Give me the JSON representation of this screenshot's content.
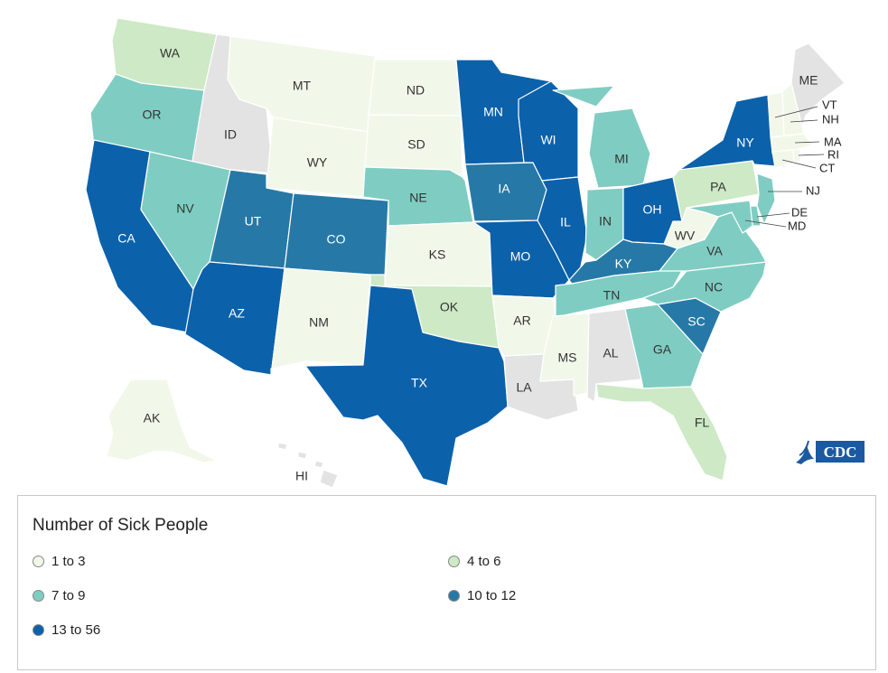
{
  "legend": {
    "title": "Number of Sick People",
    "items": [
      {
        "label": "1 to 3",
        "color": "#f1f8ea"
      },
      {
        "label": "4 to 6",
        "color": "#cde9c6"
      },
      {
        "label": "7 to 9",
        "color": "#7fcdc2"
      },
      {
        "label": "10 to 12",
        "color": "#2679a7"
      },
      {
        "label": "13 to 56",
        "color": "#0c61ab"
      }
    ]
  },
  "no_data_color": "#e3e3e3",
  "logo": {
    "text": "CDC",
    "color": "#1b5aa0"
  },
  "states": [
    {
      "abbr": "WA",
      "bin": 1
    },
    {
      "abbr": "OR",
      "bin": 2
    },
    {
      "abbr": "CA",
      "bin": 4
    },
    {
      "abbr": "ID",
      "bin": -1
    },
    {
      "abbr": "NV",
      "bin": 2
    },
    {
      "abbr": "MT",
      "bin": 0
    },
    {
      "abbr": "WY",
      "bin": 0
    },
    {
      "abbr": "UT",
      "bin": 3
    },
    {
      "abbr": "AZ",
      "bin": 4
    },
    {
      "abbr": "CO",
      "bin": 3
    },
    {
      "abbr": "NM",
      "bin": 0
    },
    {
      "abbr": "ND",
      "bin": 0
    },
    {
      "abbr": "SD",
      "bin": 0
    },
    {
      "abbr": "NE",
      "bin": 2
    },
    {
      "abbr": "KS",
      "bin": 0
    },
    {
      "abbr": "OK",
      "bin": 1
    },
    {
      "abbr": "TX",
      "bin": 4
    },
    {
      "abbr": "MN",
      "bin": 4
    },
    {
      "abbr": "IA",
      "bin": 3
    },
    {
      "abbr": "MO",
      "bin": 4
    },
    {
      "abbr": "AR",
      "bin": 0
    },
    {
      "abbr": "LA",
      "bin": -1
    },
    {
      "abbr": "WI",
      "bin": 4
    },
    {
      "abbr": "IL",
      "bin": 4
    },
    {
      "abbr": "MI",
      "bin": 2
    },
    {
      "abbr": "IN",
      "bin": 2
    },
    {
      "abbr": "OH",
      "bin": 4
    },
    {
      "abbr": "KY",
      "bin": 3
    },
    {
      "abbr": "TN",
      "bin": 2
    },
    {
      "abbr": "MS",
      "bin": 0
    },
    {
      "abbr": "AL",
      "bin": -1
    },
    {
      "abbr": "GA",
      "bin": 2
    },
    {
      "abbr": "FL",
      "bin": 1
    },
    {
      "abbr": "SC",
      "bin": 3
    },
    {
      "abbr": "NC",
      "bin": 2
    },
    {
      "abbr": "VA",
      "bin": 2
    },
    {
      "abbr": "WV",
      "bin": 0
    },
    {
      "abbr": "PA",
      "bin": 1
    },
    {
      "abbr": "NY",
      "bin": 4
    },
    {
      "abbr": "NJ",
      "bin": 2
    },
    {
      "abbr": "DE",
      "bin": 2
    },
    {
      "abbr": "MD",
      "bin": 2
    },
    {
      "abbr": "CT",
      "bin": 0
    },
    {
      "abbr": "RI",
      "bin": 0
    },
    {
      "abbr": "MA",
      "bin": 0
    },
    {
      "abbr": "VT",
      "bin": 0
    },
    {
      "abbr": "NH",
      "bin": 0
    },
    {
      "abbr": "ME",
      "bin": -1
    },
    {
      "abbr": "AK",
      "bin": 0
    },
    {
      "abbr": "HI",
      "bin": -1
    }
  ]
}
